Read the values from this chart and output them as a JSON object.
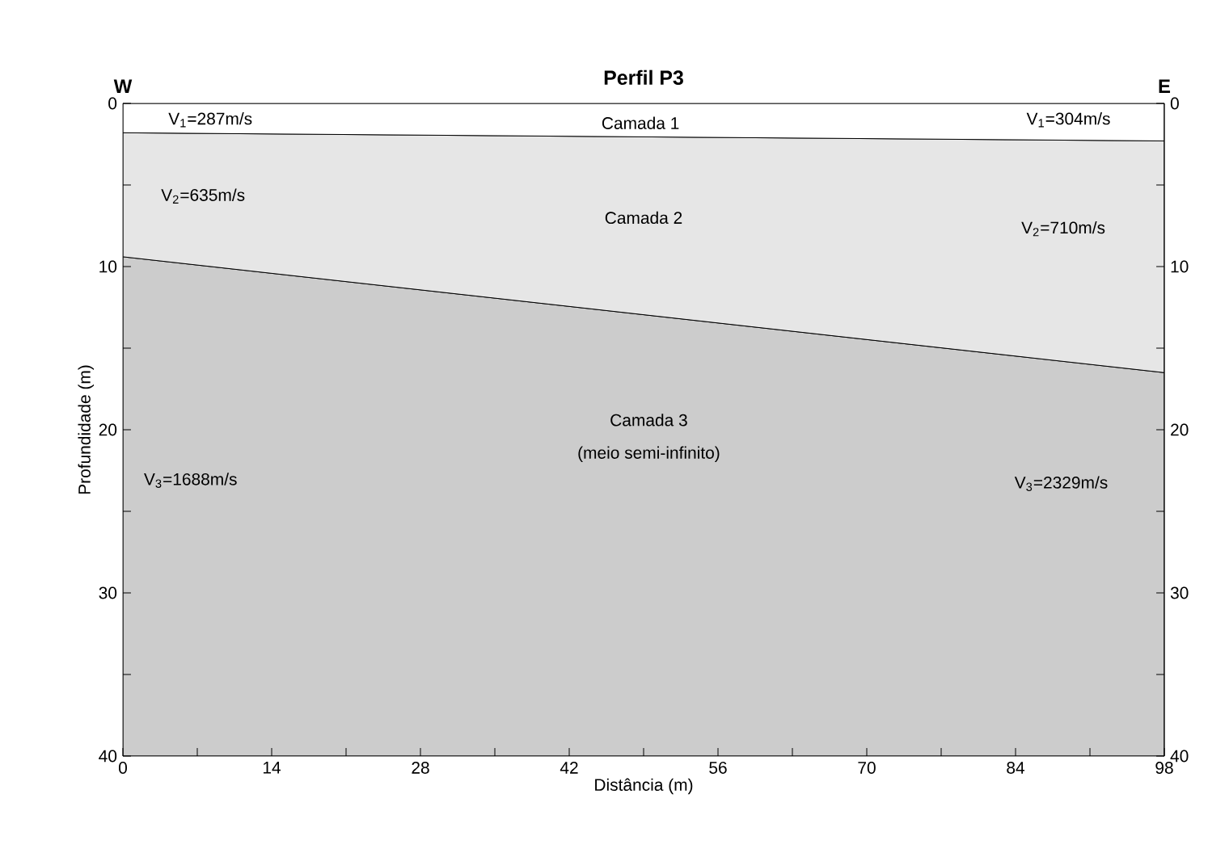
{
  "chart_data": {
    "type": "area",
    "stacked": true,
    "title": "Perfil P3",
    "xlabel": "Distância (m)",
    "ylabel": "Profundidade (m)",
    "x": [
      0,
      98
    ],
    "series": [
      {
        "color": "#ffffff",
        "values": [
          1.8,
          2.3
        ]
      },
      {
        "color": "#e6e6e6",
        "values": [
          7.6,
          14.2
        ]
      },
      {
        "color": "#cccccc",
        "values": [
          30.6,
          23.5
        ]
      }
    ],
    "xlim": [
      0,
      98
    ],
    "xticks": [
      0,
      {
        "value": 7,
        "label": null
      },
      14,
      {
        "value": 21,
        "label": null
      },
      28,
      {
        "value": 35,
        "label": null
      },
      42,
      {
        "value": 49,
        "label": null
      },
      56,
      {
        "value": 63,
        "label": null
      },
      70,
      {
        "value": 77,
        "label": null
      },
      84,
      {
        "value": 91,
        "label": null
      },
      98
    ],
    "ylim": [
      40,
      0
    ],
    "yticks": [
      0,
      {
        "value": 5,
        "label": null
      },
      10,
      {
        "value": 15,
        "label": null
      },
      20,
      {
        "value": 25,
        "label": null
      },
      30,
      {
        "value": 35,
        "label": null
      },
      40
    ],
    "y2lim": [
      40,
      0
    ],
    "y2ticks": [
      0,
      {
        "value": 5,
        "label": null
      },
      10,
      {
        "value": 15,
        "label": null
      },
      20,
      {
        "value": 25,
        "label": null
      },
      30,
      {
        "value": 35,
        "label": null
      },
      40
    ],
    "annotations": [
      "W",
      "E",
      "V$_{1}$=287m/s",
      "Camada 1",
      "V$_{1}$=304m/s",
      "V$_{2}$=635m/s",
      "Camada 2",
      "V$_{2}$=710m/s",
      "Camada 3",
      "(meio semi-infinito)",
      "V$_{3}$=1688m/s",
      "V$_{3}$=2329m/s"
    ]
  }
}
